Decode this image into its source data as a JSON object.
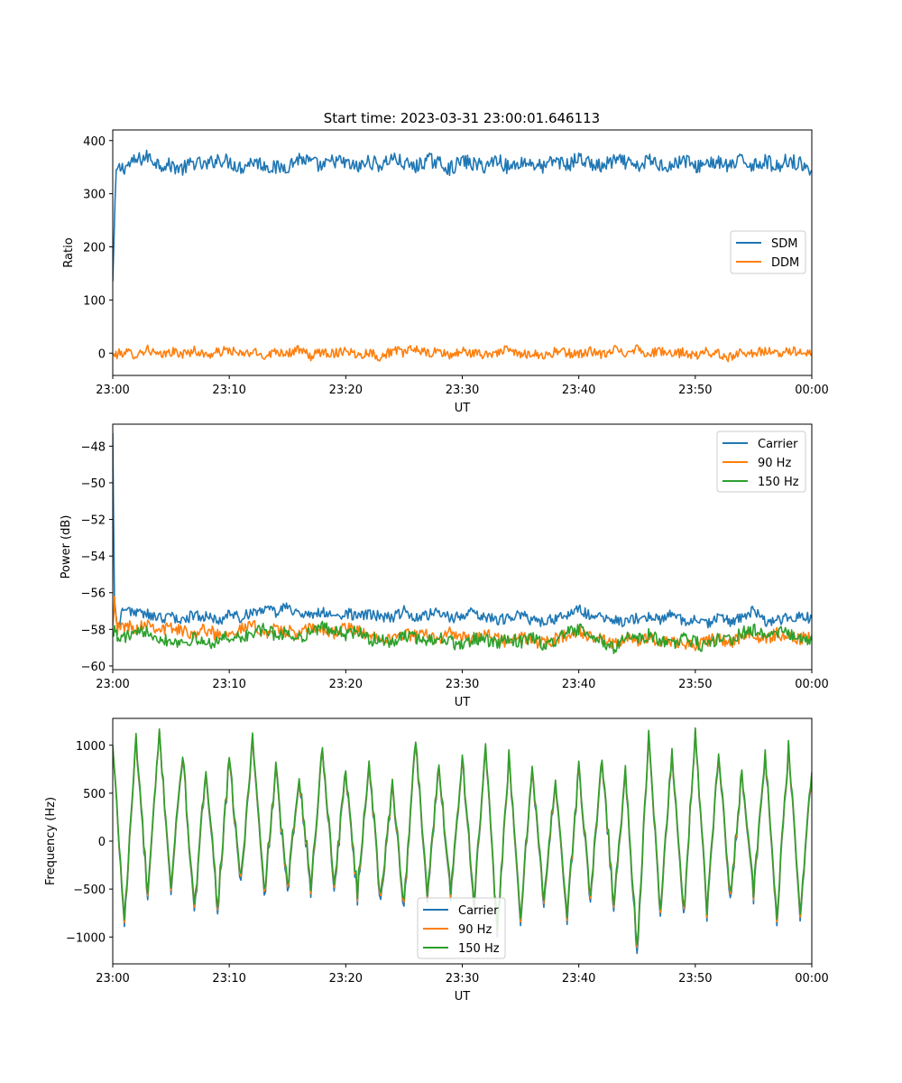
{
  "figure": {
    "title": "Start time: 2023-03-31 23:00:01.646113"
  },
  "chart_data": [
    {
      "type": "line",
      "title": "Start time: 2023-03-31 23:00:01.646113",
      "xlabel": "UT",
      "ylabel": "Ratio",
      "x_ticks": [
        "23:00",
        "23:10",
        "23:20",
        "23:30",
        "23:40",
        "23:50",
        "00:00"
      ],
      "x_range_minutes": [
        0,
        60
      ],
      "ylim": [
        -42,
        420
      ],
      "y_ticks": [
        0,
        100,
        200,
        300,
        400
      ],
      "legend_position": "center-right",
      "series": [
        {
          "name": "SDM",
          "color": "#1f77b4",
          "x": [
            0,
            0.3,
            1,
            2,
            3,
            4,
            5,
            6,
            7,
            8,
            9,
            10,
            11,
            12,
            13,
            14,
            15,
            16,
            17,
            18,
            19,
            20,
            21,
            22,
            23,
            24,
            25,
            26,
            27,
            28,
            29,
            30,
            31,
            32,
            33,
            34,
            35,
            36,
            37,
            38,
            39,
            40,
            41,
            42,
            43,
            44,
            45,
            46,
            47,
            48,
            49,
            50,
            51,
            52,
            53,
            54,
            55,
            56,
            57,
            58,
            59,
            60
          ],
          "values": [
            135,
            345,
            350,
            362,
            370,
            356,
            353,
            347,
            359,
            352,
            366,
            360,
            349,
            362,
            354,
            348,
            352,
            367,
            359,
            350,
            363,
            357,
            349,
            361,
            353,
            368,
            356,
            350,
            364,
            358,
            347,
            362,
            355,
            352,
            366,
            348,
            360,
            357,
            349,
            364,
            353,
            367,
            356,
            350,
            362,
            359,
            348,
            364,
            355,
            352,
            366,
            349,
            360,
            357,
            351,
            363,
            354,
            362,
            350,
            365,
            356,
            344
          ],
          "noise_amplitude": 14
        },
        {
          "name": "DDM",
          "color": "#ff7f0e",
          "x": [
            0,
            1,
            2,
            3,
            4,
            5,
            6,
            7,
            8,
            9,
            10,
            11,
            12,
            13,
            14,
            15,
            16,
            17,
            18,
            19,
            20,
            21,
            22,
            23,
            24,
            25,
            26,
            27,
            28,
            29,
            30,
            31,
            32,
            33,
            34,
            35,
            36,
            37,
            38,
            39,
            40,
            41,
            42,
            43,
            44,
            45,
            46,
            47,
            48,
            49,
            50,
            51,
            52,
            53,
            54,
            55,
            56,
            57,
            58,
            59,
            60
          ],
          "values": [
            -5,
            2,
            -3,
            8,
            -6,
            3,
            -2,
            5,
            -4,
            1,
            6,
            -3,
            2,
            -5,
            4,
            0,
            6,
            -6,
            3,
            -1,
            7,
            -4,
            2,
            -8,
            5,
            1,
            9,
            -2,
            3,
            -5,
            4,
            -1,
            -3,
            2,
            6,
            -4,
            1,
            -6,
            3,
            0,
            -2,
            4,
            -5,
            7,
            1,
            10,
            -3,
            5,
            -4,
            2,
            -6,
            3,
            -2,
            -8,
            4,
            -1,
            5,
            -3,
            6,
            2,
            -1
          ],
          "noise_amplitude": 9
        }
      ]
    },
    {
      "type": "line",
      "xlabel": "UT",
      "ylabel": "Power (dB)",
      "x_ticks": [
        "23:00",
        "23:10",
        "23:20",
        "23:30",
        "23:40",
        "23:50",
        "00:00"
      ],
      "x_range_minutes": [
        0,
        60
      ],
      "ylim": [
        -60.2,
        -46.8
      ],
      "y_ticks": [
        -48,
        -50,
        -52,
        -54,
        -56,
        -58,
        -60
      ],
      "legend_position": "top-right",
      "series": [
        {
          "name": "Carrier",
          "color": "#1f77b4",
          "x": [
            0,
            0.15,
            0.4,
            1,
            2,
            3,
            4,
            5,
            6,
            7,
            8,
            9,
            10,
            11,
            12,
            13,
            14,
            15,
            16,
            17,
            18,
            19,
            20,
            21,
            22,
            23,
            24,
            25,
            26,
            27,
            28,
            29,
            30,
            31,
            32,
            33,
            34,
            35,
            36,
            37,
            38,
            39,
            40,
            41,
            42,
            43,
            44,
            45,
            46,
            47,
            48,
            49,
            50,
            51,
            52,
            53,
            54,
            55,
            56,
            57,
            58,
            59,
            60
          ],
          "values": [
            -47.3,
            -56.5,
            -57.9,
            -56.8,
            -57.1,
            -57.2,
            -57.4,
            -57.3,
            -57.5,
            -57.2,
            -57.3,
            -57.6,
            -57.1,
            -57.4,
            -57.0,
            -56.9,
            -57.1,
            -56.7,
            -57.2,
            -57.3,
            -57.0,
            -57.4,
            -57.1,
            -57.3,
            -57.2,
            -57.3,
            -57.4,
            -57.0,
            -57.3,
            -57.2,
            -57.1,
            -57.4,
            -57.2,
            -57.1,
            -57.3,
            -57.5,
            -57.4,
            -57.2,
            -57.5,
            -57.6,
            -57.4,
            -57.3,
            -56.9,
            -57.3,
            -57.4,
            -57.5,
            -57.6,
            -57.4,
            -57.3,
            -57.5,
            -57.2,
            -57.6,
            -57.4,
            -57.7,
            -57.3,
            -57.6,
            -57.4,
            -57.0,
            -57.6,
            -57.5,
            -57.4,
            -57.3,
            -57.4
          ],
          "noise_amplitude": 0.3
        },
        {
          "name": "90 Hz",
          "color": "#ff7f0e",
          "x": [
            0,
            0.15,
            0.4,
            1,
            2,
            3,
            4,
            5,
            6,
            7,
            8,
            9,
            10,
            11,
            12,
            13,
            14,
            15,
            16,
            17,
            18,
            19,
            20,
            21,
            22,
            23,
            24,
            25,
            26,
            27,
            28,
            29,
            30,
            31,
            32,
            33,
            34,
            35,
            36,
            37,
            38,
            39,
            40,
            41,
            42,
            43,
            44,
            45,
            46,
            47,
            48,
            49,
            50,
            51,
            52,
            53,
            54,
            55,
            56,
            57,
            58,
            59,
            60
          ],
          "values": [
            -57.8,
            -56.2,
            -58.0,
            -57.8,
            -57.9,
            -57.6,
            -58.0,
            -57.9,
            -58.1,
            -58.2,
            -58.0,
            -58.3,
            -58.1,
            -58.0,
            -57.8,
            -58.2,
            -58.0,
            -58.1,
            -58.3,
            -57.9,
            -58.0,
            -58.2,
            -57.9,
            -58.1,
            -58.4,
            -58.3,
            -58.6,
            -58.2,
            -58.4,
            -58.3,
            -58.5,
            -58.2,
            -58.4,
            -58.6,
            -58.3,
            -58.5,
            -58.7,
            -58.4,
            -58.6,
            -58.8,
            -58.5,
            -58.3,
            -58.1,
            -58.4,
            -58.6,
            -58.9,
            -58.5,
            -58.7,
            -58.4,
            -58.8,
            -58.6,
            -58.7,
            -58.9,
            -58.6,
            -58.5,
            -58.8,
            -58.4,
            -58.3,
            -58.6,
            -58.2,
            -58.4,
            -58.5,
            -58.3
          ],
          "noise_amplitude": 0.35
        },
        {
          "name": "150 Hz",
          "color": "#2ca02c",
          "x": [
            0,
            0.15,
            0.4,
            1,
            2,
            3,
            4,
            5,
            6,
            7,
            8,
            9,
            10,
            11,
            12,
            13,
            14,
            15,
            16,
            17,
            18,
            19,
            20,
            21,
            22,
            23,
            24,
            25,
            26,
            27,
            28,
            29,
            30,
            31,
            32,
            33,
            34,
            35,
            36,
            37,
            38,
            39,
            40,
            41,
            42,
            43,
            44,
            45,
            46,
            47,
            48,
            49,
            50,
            51,
            52,
            53,
            54,
            55,
            56,
            57,
            58,
            59,
            60
          ],
          "values": [
            -58.3,
            -57.8,
            -58.6,
            -58.4,
            -58.3,
            -58.0,
            -58.5,
            -58.6,
            -58.7,
            -58.5,
            -58.8,
            -58.6,
            -58.4,
            -58.5,
            -58.2,
            -58.0,
            -58.3,
            -58.2,
            -58.5,
            -58.1,
            -57.9,
            -58.0,
            -58.3,
            -58.1,
            -58.6,
            -58.5,
            -58.8,
            -58.3,
            -58.5,
            -58.6,
            -58.4,
            -58.7,
            -58.9,
            -58.5,
            -58.6,
            -58.8,
            -58.5,
            -58.7,
            -58.4,
            -58.9,
            -58.6,
            -58.2,
            -58.0,
            -58.4,
            -58.7,
            -59.0,
            -58.4,
            -58.6,
            -58.3,
            -58.6,
            -58.8,
            -58.5,
            -58.7,
            -59.0,
            -58.4,
            -58.6,
            -58.2,
            -58.0,
            -58.4,
            -58.1,
            -58.3,
            -58.4,
            -58.6
          ],
          "noise_amplitude": 0.35
        }
      ]
    },
    {
      "type": "line",
      "xlabel": "UT",
      "ylabel": "Frequency (Hz)",
      "x_ticks": [
        "23:00",
        "23:10",
        "23:20",
        "23:30",
        "23:40",
        "23:50",
        "00:00"
      ],
      "x_range_minutes": [
        0,
        60
      ],
      "ylim": [
        -1280,
        1280
      ],
      "y_ticks": [
        1000,
        500,
        0,
        -500,
        -1000
      ],
      "legend_position": "lower-center",
      "series": [
        {
          "name": "Carrier",
          "color": "#1f77b4",
          "x": [
            0,
            1,
            2,
            3,
            4,
            5,
            6,
            7,
            8,
            9,
            10,
            11,
            12,
            13,
            14,
            15,
            16,
            17,
            18,
            19,
            20,
            21,
            22,
            23,
            24,
            25,
            26,
            27,
            28,
            29,
            30,
            31,
            32,
            33,
            34,
            35,
            36,
            37,
            38,
            39,
            40,
            41,
            42,
            43,
            44,
            45,
            46,
            47,
            48,
            49,
            50,
            51,
            52,
            53,
            54,
            55,
            56,
            57,
            58,
            59,
            60
          ],
          "values": [
            980,
            -890,
            1050,
            -620,
            1110,
            -520,
            900,
            -800,
            760,
            -720,
            820,
            -480,
            1040,
            -600,
            720,
            -560,
            680,
            -540,
            960,
            -520,
            720,
            -600,
            820,
            -680,
            580,
            -720,
            1040,
            -600,
            760,
            -580,
            860,
            -680,
            920,
            -960,
            840,
            -860,
            780,
            -700,
            640,
            -840,
            740,
            -640,
            860,
            -720,
            700,
            -1180,
            1040,
            -760,
            900,
            -820,
            1150,
            -780,
            940,
            -660,
            720,
            -600,
            880,
            -840,
            940,
            -760,
            680
          ],
          "noise_amplitude": 80
        },
        {
          "name": "90 Hz",
          "color": "#ff7f0e",
          "x": [
            0,
            1,
            2,
            3,
            4,
            5,
            6,
            7,
            8,
            9,
            10,
            11,
            12,
            13,
            14,
            15,
            16,
            17,
            18,
            19,
            20,
            21,
            22,
            23,
            24,
            25,
            26,
            27,
            28,
            29,
            30,
            31,
            32,
            33,
            34,
            35,
            36,
            37,
            38,
            39,
            40,
            41,
            42,
            43,
            44,
            45,
            46,
            47,
            48,
            49,
            50,
            51,
            52,
            53,
            54,
            55,
            56,
            57,
            58,
            59,
            60
          ],
          "values": [
            990,
            -850,
            1070,
            -580,
            1120,
            -480,
            920,
            -760,
            780,
            -680,
            840,
            -440,
            1060,
            -560,
            740,
            -520,
            700,
            -500,
            980,
            -480,
            740,
            -560,
            840,
            -640,
            600,
            -680,
            1060,
            -560,
            780,
            -540,
            880,
            -640,
            940,
            -920,
            860,
            -820,
            800,
            -660,
            660,
            -800,
            760,
            -600,
            880,
            -680,
            720,
            -1120,
            1060,
            -720,
            920,
            -780,
            1160,
            -740,
            960,
            -620,
            740,
            -560,
            900,
            -800,
            960,
            -720,
            700
          ],
          "noise_amplitude": 80
        },
        {
          "name": "150 Hz",
          "color": "#2ca02c",
          "x": [
            0,
            1,
            2,
            3,
            4,
            5,
            6,
            7,
            8,
            9,
            10,
            11,
            12,
            13,
            14,
            15,
            16,
            17,
            18,
            19,
            20,
            21,
            22,
            23,
            24,
            25,
            26,
            27,
            28,
            29,
            30,
            31,
            32,
            33,
            34,
            35,
            36,
            37,
            38,
            39,
            40,
            41,
            42,
            43,
            44,
            45,
            46,
            47,
            48,
            49,
            50,
            51,
            52,
            53,
            54,
            55,
            56,
            57,
            58,
            59,
            60
          ],
          "values": [
            1000,
            -820,
            1090,
            -550,
            1130,
            -450,
            940,
            -730,
            800,
            -650,
            860,
            -410,
            1080,
            -530,
            760,
            -490,
            720,
            -470,
            1000,
            -450,
            760,
            -530,
            860,
            -610,
            620,
            -650,
            1080,
            -530,
            800,
            -510,
            900,
            -610,
            960,
            -890,
            880,
            -790,
            820,
            -630,
            680,
            -770,
            780,
            -570,
            900,
            -650,
            740,
            -1090,
            1080,
            -690,
            940,
            -750,
            1170,
            -710,
            980,
            -590,
            760,
            -530,
            920,
            -770,
            980,
            -690,
            720
          ],
          "noise_amplitude": 80
        }
      ]
    }
  ]
}
